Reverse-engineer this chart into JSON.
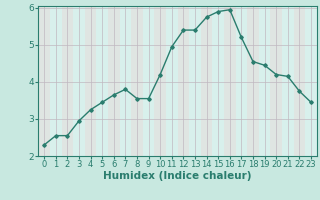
{
  "x": [
    0,
    1,
    2,
    3,
    4,
    5,
    6,
    7,
    8,
    9,
    10,
    11,
    12,
    13,
    14,
    15,
    16,
    17,
    18,
    19,
    20,
    21,
    22,
    23
  ],
  "y": [
    2.3,
    2.55,
    2.55,
    2.95,
    3.25,
    3.45,
    3.65,
    3.8,
    3.55,
    3.55,
    4.2,
    4.95,
    5.4,
    5.4,
    5.75,
    5.9,
    5.95,
    5.2,
    4.55,
    4.45,
    4.2,
    4.15,
    3.75,
    3.45
  ],
  "line_color": "#2a7d6e",
  "bg_color": "#c8e8e0",
  "plot_bg_color": "#d8f0ec",
  "grid_color": "#c0b8c0",
  "axis_color": "#2a7d6e",
  "xlabel": "Humidex (Indice chaleur)",
  "ylim": [
    2,
    6
  ],
  "xlim": [
    -0.5,
    23.5
  ],
  "yticks": [
    2,
    3,
    4,
    5,
    6
  ],
  "xticks": [
    0,
    1,
    2,
    3,
    4,
    5,
    6,
    7,
    8,
    9,
    10,
    11,
    12,
    13,
    14,
    15,
    16,
    17,
    18,
    19,
    20,
    21,
    22,
    23
  ],
  "marker": "D",
  "markersize": 1.8,
  "linewidth": 1.0,
  "xlabel_fontsize": 7.5,
  "tick_fontsize": 6.0
}
